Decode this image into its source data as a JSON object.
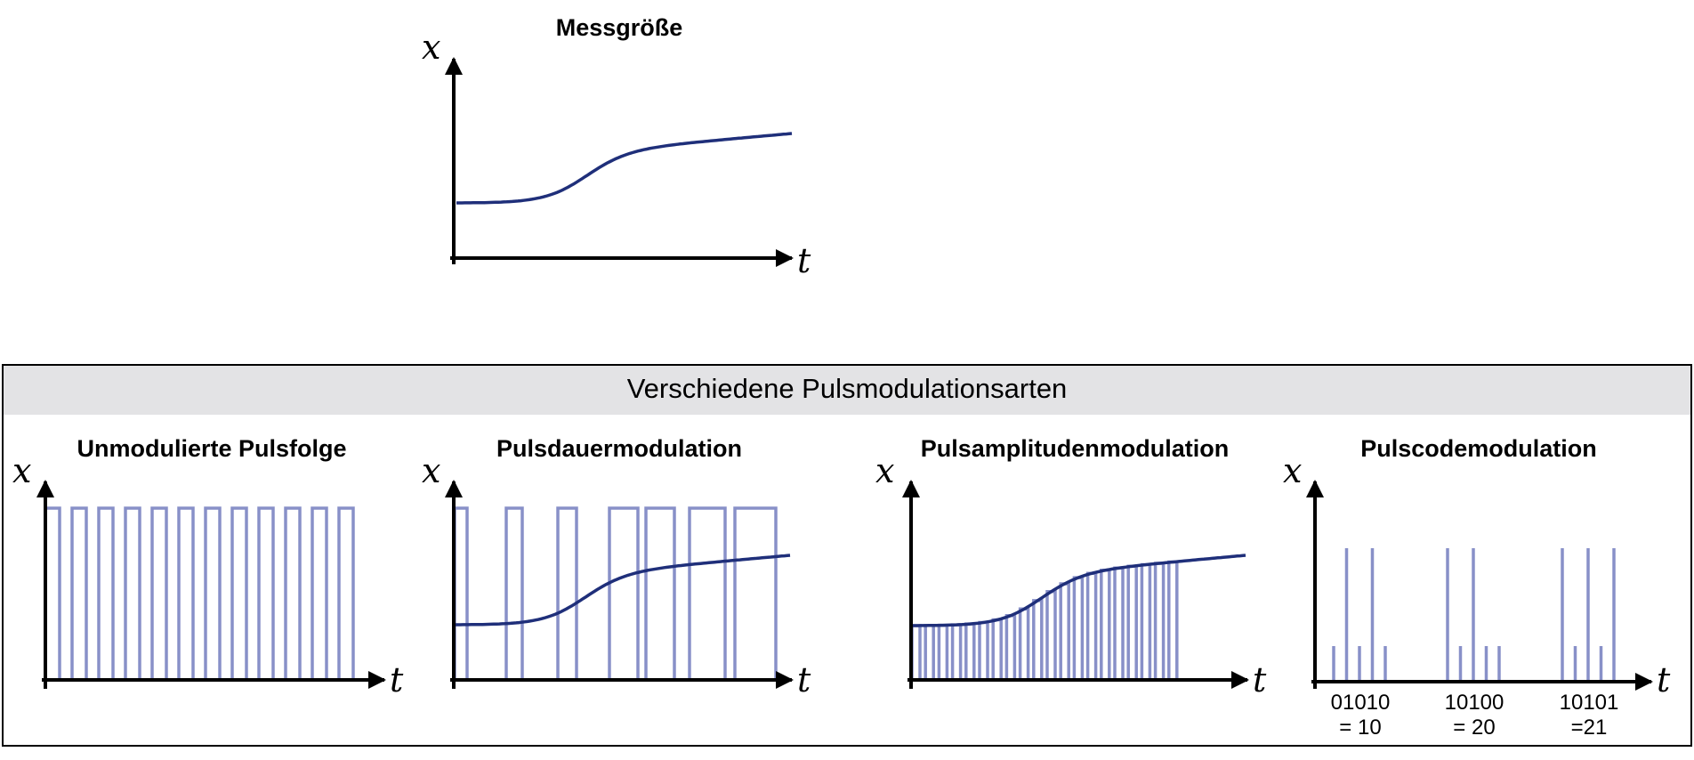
{
  "colors": {
    "axis": "#000000",
    "signal": "#1f2f7a",
    "pulse": "#8890c8",
    "header_band": "#e3e3e5",
    "frame": "#000000"
  },
  "top": {
    "title": "Messgröße",
    "x_axis": "t",
    "y_axis": "x"
  },
  "section": {
    "title": "Verschiedene Pulsmodulationsarten"
  },
  "panels": {
    "unmodulated": {
      "title": "Unmodulierte Pulsfolge",
      "x_axis": "t",
      "y_axis": "x"
    },
    "pdm": {
      "title": "Pulsdauermodulation",
      "x_axis": "t",
      "y_axis": "x"
    },
    "pam": {
      "title": "Pulsamplitudenmodulation",
      "x_axis": "t",
      "y_axis": "x"
    },
    "pcm": {
      "title": "Pulscodemodulation",
      "x_axis": "t",
      "y_axis": "x",
      "codes": [
        {
          "bits": "01010",
          "value": "= 10"
        },
        {
          "bits": "10100",
          "value": "= 20"
        },
        {
          "bits": "10101",
          "value": "=21"
        }
      ]
    }
  }
}
